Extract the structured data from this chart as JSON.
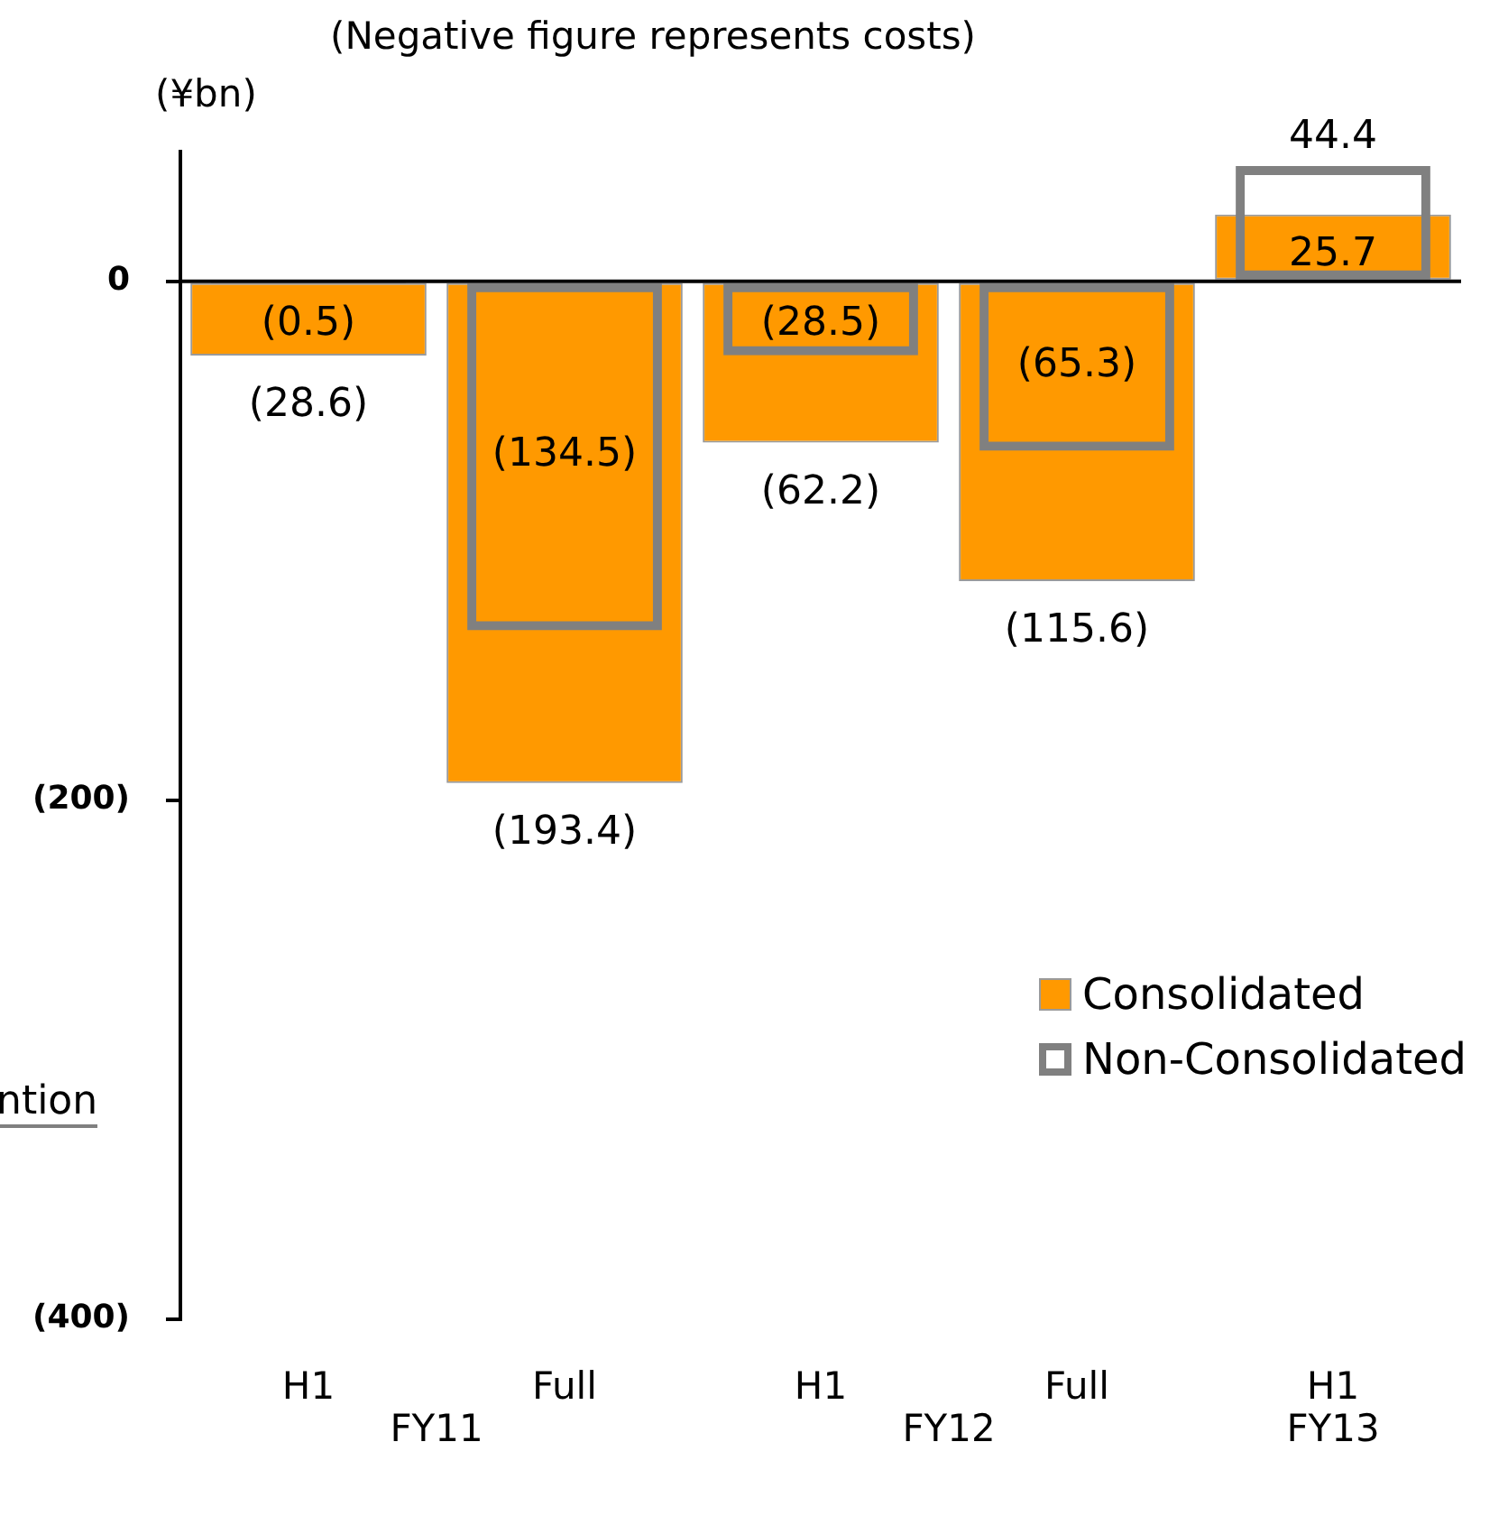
{
  "chart_data": {
    "type": "bar",
    "subtitle": "(Negative figure represents costs)",
    "ylabel": "(¥bn)",
    "categories": [
      "H1",
      "Full",
      "H1",
      "Full",
      "H1"
    ],
    "series": [
      {
        "name": "Consolidated",
        "color": "#ff9900",
        "values": [
          -28.6,
          -193.4,
          -62.2,
          -115.6,
          25.7
        ],
        "value_labels": [
          "(28.6)",
          "(193.4)",
          "(62.2)",
          "(115.6)",
          "25.7"
        ]
      },
      {
        "name": "Non-Consolidated",
        "color": "#808080",
        "values": [
          -0.5,
          -134.5,
          -28.5,
          -65.3,
          44.4
        ],
        "value_labels": [
          "(0.5)",
          "(134.5)",
          "(28.5)",
          "(65.3)",
          "44.4"
        ]
      }
    ],
    "ylim": [
      -400,
      50
    ],
    "yticks": [
      {
        "value": -400,
        "label": "(400)"
      },
      {
        "value": -200,
        "label": "(200)"
      },
      0
    ],
    "ref_lines": [
      {
        "axis": "y",
        "value": 0,
        "color": "#000000"
      }
    ],
    "annotations": [
      "FY11",
      "FY12",
      "FY13",
      "ntion"
    ],
    "legend": "bottom right",
    "grid": false
  }
}
